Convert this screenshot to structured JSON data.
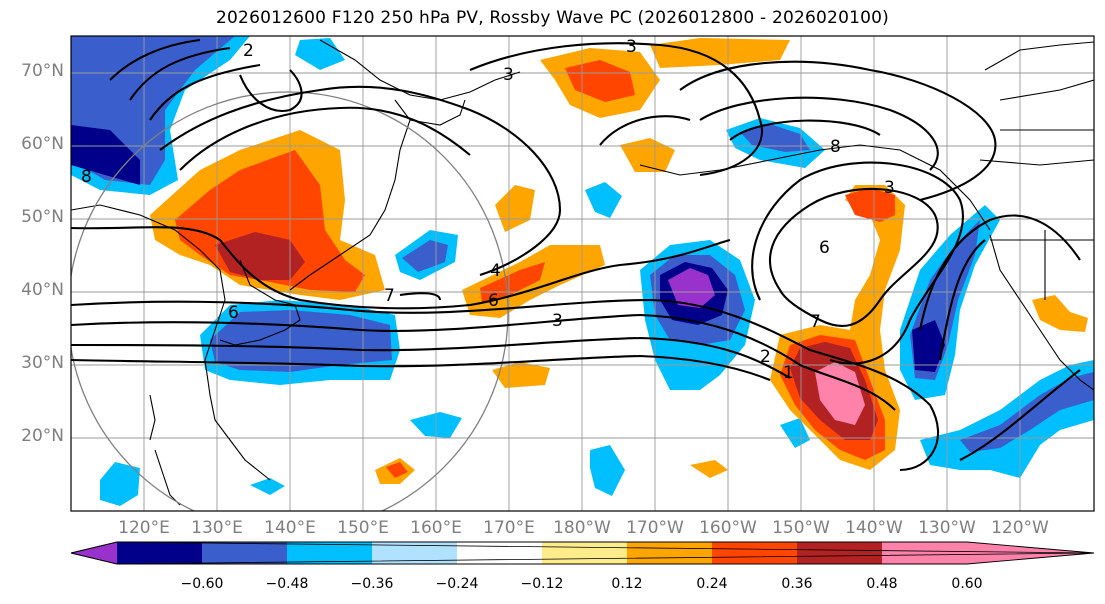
{
  "title": "2026012600 F120 250 hPa PV, Rossby Wave PC (2026012800 - 2026020100)",
  "lat_labels": [
    "70°N",
    "60°N",
    "50°N",
    "40°N",
    "30°N",
    "20°N"
  ],
  "lon_labels": [
    "120°E",
    "130°E",
    "140°E",
    "150°E",
    "160°E",
    "170°E",
    "180°W",
    "170°W",
    "160°W",
    "150°W",
    "140°W",
    "130°W",
    "120°W"
  ],
  "colorbar": {
    "ticks": [
      "−0.60",
      "−0.48",
      "−0.36",
      "−0.24",
      "−0.12",
      "0.12",
      "0.24",
      "0.36",
      "0.48",
      "0.60"
    ],
    "colors": [
      "#9932cc",
      "#00008b",
      "#3a5fcd",
      "#00bfff",
      "#b0e2ff",
      "#ffffff",
      "#ffec8b",
      "#ffa500",
      "#ff4500",
      "#b22222",
      "#ff82ab"
    ]
  },
  "contour_labels": [
    "2",
    "3",
    "3",
    "8",
    "6",
    "3",
    "6",
    "7",
    "6",
    "3",
    "7",
    "2",
    "1",
    "4",
    "8"
  ]
}
